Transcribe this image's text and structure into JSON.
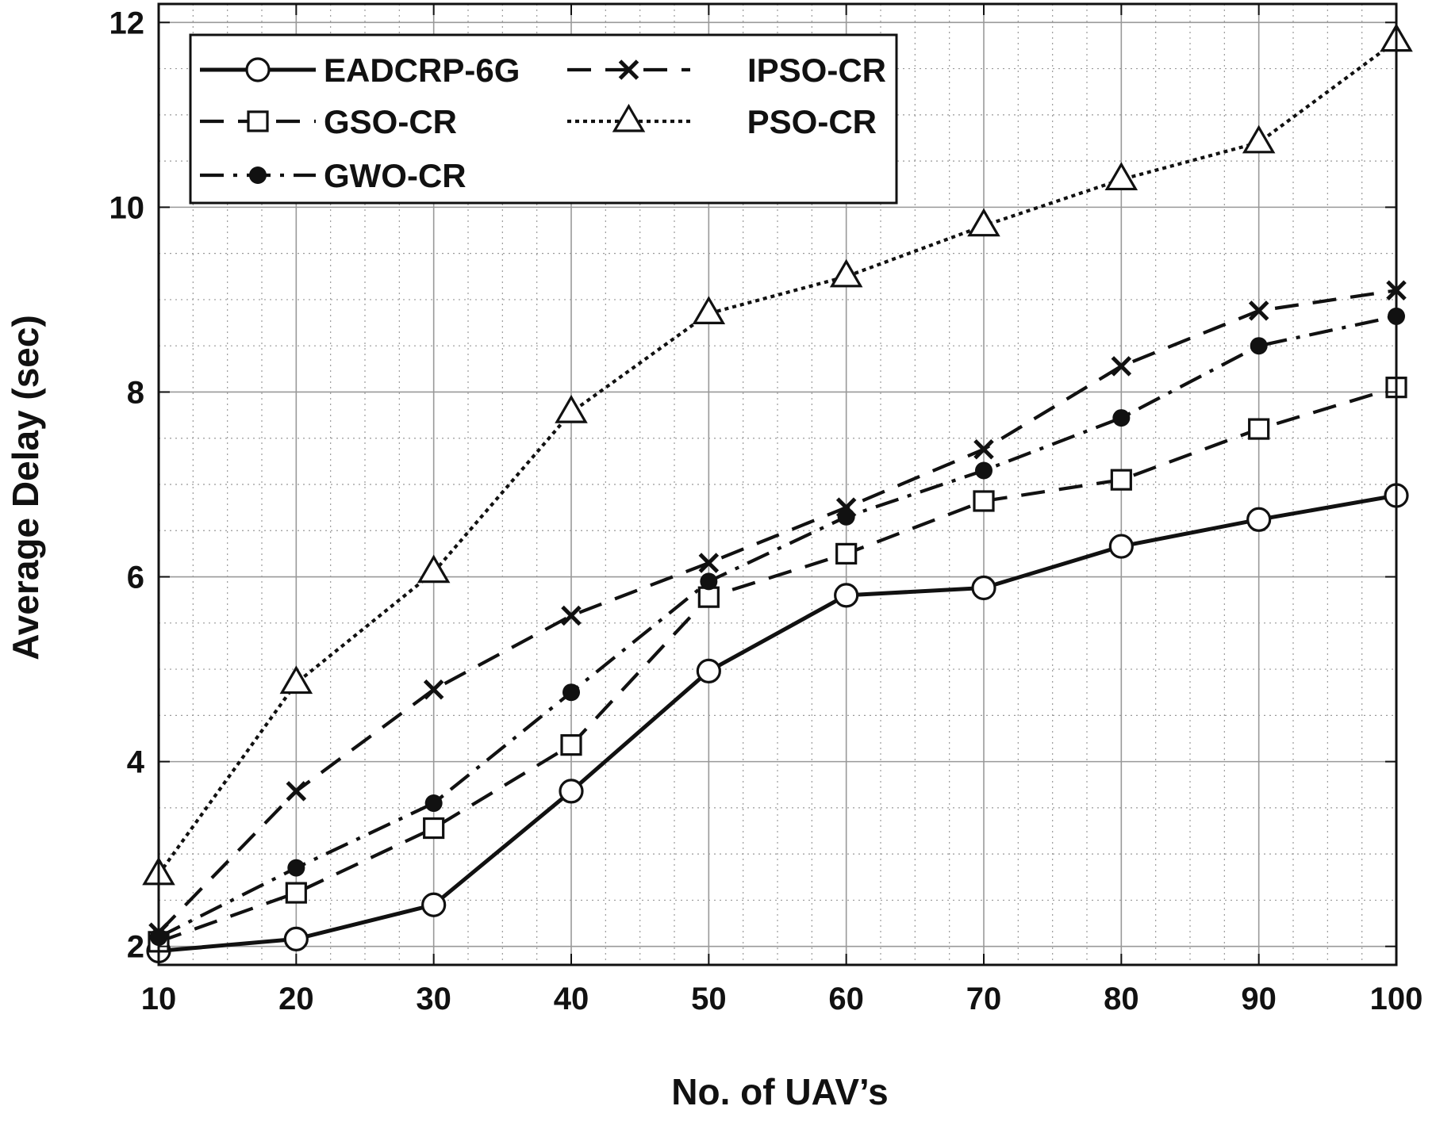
{
  "chart_data": {
    "type": "line",
    "title": "",
    "xlabel": "No. of UAV’s",
    "ylabel": "Average Delay (sec)",
    "x": [
      10,
      20,
      30,
      40,
      50,
      60,
      70,
      80,
      90,
      100
    ],
    "xlim": [
      10,
      100
    ],
    "ylim": [
      1.8,
      12.2
    ],
    "xticks": [
      10,
      20,
      30,
      40,
      50,
      60,
      70,
      80,
      90,
      100
    ],
    "yticks": [
      2,
      4,
      6,
      8,
      10,
      12
    ],
    "ytick_labels": [
      "2",
      "4",
      "6",
      "8",
      "10",
      "12"
    ],
    "grid": true,
    "minor_grid": true,
    "legend_position": "top-left",
    "series": [
      {
        "name": "EADCRP-6G",
        "marker": "circle",
        "dash": "solid",
        "values": [
          1.95,
          2.08,
          2.45,
          3.68,
          4.98,
          5.8,
          5.88,
          6.33,
          6.62,
          6.88
        ]
      },
      {
        "name": "IPSO-CR",
        "marker": "x",
        "dash": "dash",
        "values": [
          2.15,
          3.68,
          4.78,
          5.58,
          6.15,
          6.75,
          7.38,
          8.28,
          8.88,
          9.1
        ]
      },
      {
        "name": "GSO-CR",
        "marker": "square",
        "dash": "dash",
        "values": [
          2.05,
          2.58,
          3.28,
          4.18,
          5.78,
          6.25,
          6.82,
          7.05,
          7.6,
          8.05
        ]
      },
      {
        "name": "PSO-CR",
        "marker": "triangle",
        "dash": "dotted",
        "values": [
          2.78,
          4.85,
          6.05,
          7.78,
          8.85,
          9.25,
          9.8,
          10.3,
          10.7,
          11.8
        ]
      },
      {
        "name": "GWO-CR",
        "marker": "dot",
        "dash": "dashdot",
        "values": [
          2.1,
          2.85,
          3.55,
          4.75,
          5.95,
          6.65,
          7.15,
          7.72,
          8.5,
          8.82
        ]
      }
    ],
    "colors": {
      "line": "#111111",
      "grid": "#999999",
      "background": "#ffffff"
    }
  }
}
